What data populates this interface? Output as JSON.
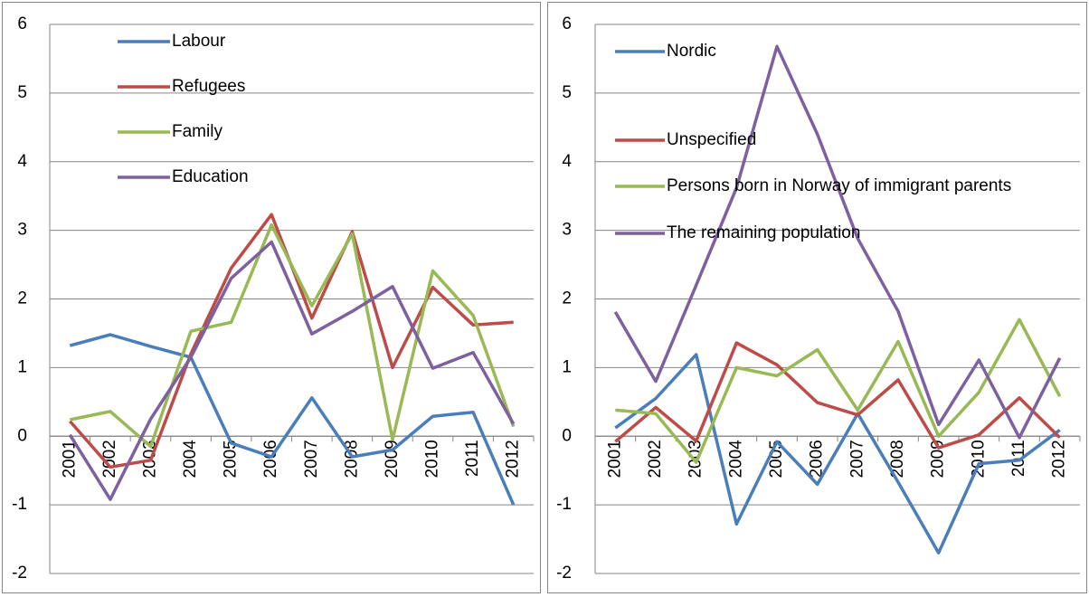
{
  "chart_data": [
    {
      "type": "line",
      "categories": [
        "2001",
        "2002",
        "2003",
        "2004",
        "2005",
        "2006",
        "2007",
        "2008",
        "2009",
        "2010",
        "2011",
        "2012"
      ],
      "series": [
        {
          "name": "Labour",
          "color": "#4a7ebb",
          "values": [
            1.32,
            1.48,
            1.31,
            1.15,
            -0.1,
            -0.3,
            0.56,
            -0.3,
            -0.2,
            0.29,
            0.35,
            -1.0
          ]
        },
        {
          "name": "Refugees",
          "color": "#be4b48",
          "values": [
            0.22,
            -0.45,
            -0.35,
            1.2,
            2.45,
            3.23,
            1.72,
            2.98,
            1.0,
            2.17,
            1.62,
            1.66
          ]
        },
        {
          "name": "Family",
          "color": "#98b954",
          "values": [
            0.24,
            0.36,
            -0.15,
            1.53,
            1.66,
            3.08,
            1.9,
            2.95,
            -0.05,
            2.41,
            1.76,
            0.14
          ]
        },
        {
          "name": "Education",
          "color": "#7d60a0",
          "values": [
            0.02,
            -0.92,
            0.25,
            1.15,
            2.3,
            2.83,
            1.49,
            1.82,
            2.18,
            0.99,
            1.22,
            0.18
          ]
        }
      ],
      "ylim": [
        -2,
        6
      ],
      "yticks": [
        -2,
        -1,
        0,
        1,
        2,
        3,
        4,
        5,
        6
      ],
      "grid": true,
      "legend": "upper left"
    },
    {
      "type": "line",
      "categories": [
        "2001",
        "2002",
        "2003",
        "2004",
        "2005",
        "2006",
        "2007",
        "2008",
        "2009",
        "2010",
        "2011",
        "2012"
      ],
      "series": [
        {
          "name": "Nordic",
          "color": "#4a7ebb",
          "values": [
            0.12,
            0.55,
            1.19,
            -1.28,
            -0.08,
            -0.7,
            0.33,
            -0.67,
            -1.7,
            -0.4,
            -0.35,
            0.09
          ]
        },
        {
          "name": "Unspecified",
          "color": "#be4b48",
          "values": [
            -0.08,
            0.42,
            -0.07,
            1.36,
            1.04,
            0.49,
            0.31,
            0.82,
            -0.17,
            0.02,
            0.56,
            -0.02
          ]
        },
        {
          "name": "Persons born in Norway of immigrant parents",
          "color": "#98b954",
          "values": [
            0.38,
            0.33,
            -0.38,
            1.0,
            0.88,
            1.26,
            0.38,
            1.38,
            0.0,
            0.64,
            1.7,
            0.58
          ]
        },
        {
          "name": "The remaining population",
          "color": "#7d60a0",
          "values": [
            1.81,
            0.8,
            2.2,
            3.62,
            5.68,
            4.4,
            2.88,
            1.82,
            0.17,
            1.11,
            -0.02,
            1.14
          ]
        }
      ],
      "ylim": [
        -2,
        6
      ],
      "yticks": [
        -2,
        -1,
        0,
        1,
        2,
        3,
        4,
        5,
        6
      ],
      "grid": true,
      "legend": "upper left"
    }
  ]
}
